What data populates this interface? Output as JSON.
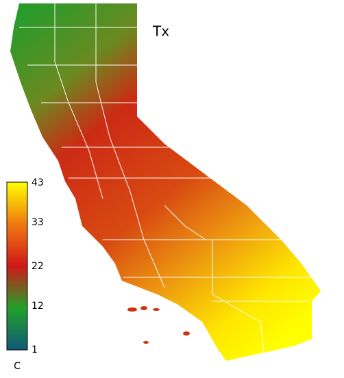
{
  "title": "Tx",
  "colorbar": {
    "unit": "C",
    "range": [
      1,
      43
    ],
    "ticks": [
      1,
      12,
      22,
      33,
      43
    ],
    "colors": [
      "#0f5a78",
      "#22a02a",
      "#d01818",
      "#f07a10",
      "#ffff00"
    ]
  }
}
